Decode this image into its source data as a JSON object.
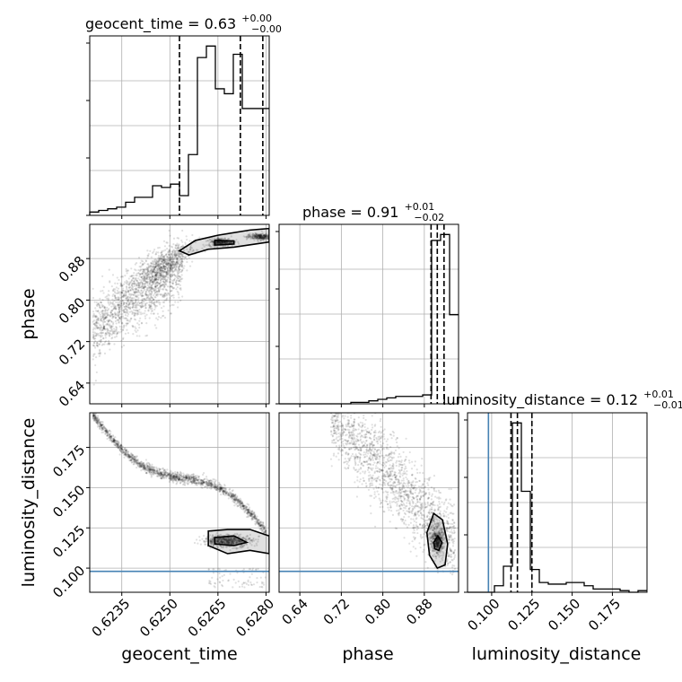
{
  "chart_data": {
    "type": "corner",
    "parameters": [
      {
        "name": "geocent_time",
        "range": [
          0.6225,
          0.6281
        ],
        "ticks": [
          0.6235,
          0.625,
          0.6265,
          0.628
        ],
        "tick_labels": [
          "0.6235",
          "0.6250",
          "0.6265",
          "0.6280"
        ],
        "title_main": "geocent_time = 0.63",
        "title_sup": "+0.00",
        "title_sub": "−0.00",
        "quantiles": [
          0.6253,
          0.6272,
          0.6279
        ],
        "hist_edges": [
          0.6225,
          0.62278,
          0.62306,
          0.62334,
          0.62362,
          0.6239,
          0.62418,
          0.62446,
          0.62474,
          0.62502,
          0.6253,
          0.62558,
          0.62586,
          0.62614,
          0.62642,
          0.6267,
          0.62698,
          0.62726,
          0.62754,
          0.62782,
          0.6281
        ],
        "hist_counts": [
          2,
          3,
          4,
          5,
          8,
          11,
          11,
          18,
          17,
          19,
          12,
          37,
          96,
          103,
          77,
          74,
          98,
          65,
          65,
          65
        ]
      },
      {
        "name": "phase",
        "range": [
          0.6,
          0.946
        ],
        "ticks": [
          0.64,
          0.72,
          0.8,
          0.88
        ],
        "tick_labels": [
          "0.64",
          "0.72",
          "0.80",
          "0.88"
        ],
        "title_main": "phase = 0.91",
        "title_sup": "+0.01",
        "title_sub": "−0.02",
        "quantiles": [
          0.893,
          0.905,
          0.918
        ],
        "hist_edges": [
          0.6,
          0.6173,
          0.6346,
          0.6519,
          0.6692,
          0.6865,
          0.7038,
          0.7211,
          0.7384,
          0.7557,
          0.773,
          0.7903,
          0.8076,
          0.8249,
          0.8422,
          0.8595,
          0.8768,
          0.8941,
          0.9114,
          0.9287,
          0.946
        ],
        "hist_counts": [
          0,
          0,
          0,
          0,
          0,
          0,
          0,
          0,
          0.5,
          0.5,
          1,
          1.5,
          2,
          2.5,
          2.5,
          2.5,
          3,
          55,
          57,
          30
        ]
      },
      {
        "name": "luminosity_distance",
        "range": [
          0.085,
          0.1965
        ],
        "ticks": [
          0.1,
          0.125,
          0.15,
          0.175
        ],
        "tick_labels": [
          "0.100",
          "0.125",
          "0.150",
          "0.175"
        ],
        "title_main": "luminosity_distance = 0.12",
        "title_sup": "+0.01",
        "title_sub": "−0.01",
        "quantiles": [
          0.112,
          0.116,
          0.125
        ],
        "truth": 0.098,
        "hist_edges": [
          0.085,
          0.09058,
          0.09615,
          0.10172,
          0.1073,
          0.11288,
          0.11845,
          0.12402,
          0.1296,
          0.13518,
          0.14075,
          0.14632,
          0.1519,
          0.15748,
          0.16305,
          0.16862,
          0.1742,
          0.17978,
          0.18535,
          0.19092,
          0.1965
        ],
        "hist_counts": [
          0,
          0,
          0,
          4,
          16,
          104,
          62,
          14,
          6,
          5,
          5,
          6,
          6,
          4,
          2,
          2,
          2,
          1,
          0,
          1
        ]
      }
    ],
    "grid": true,
    "truth_color": "#4682b4"
  }
}
